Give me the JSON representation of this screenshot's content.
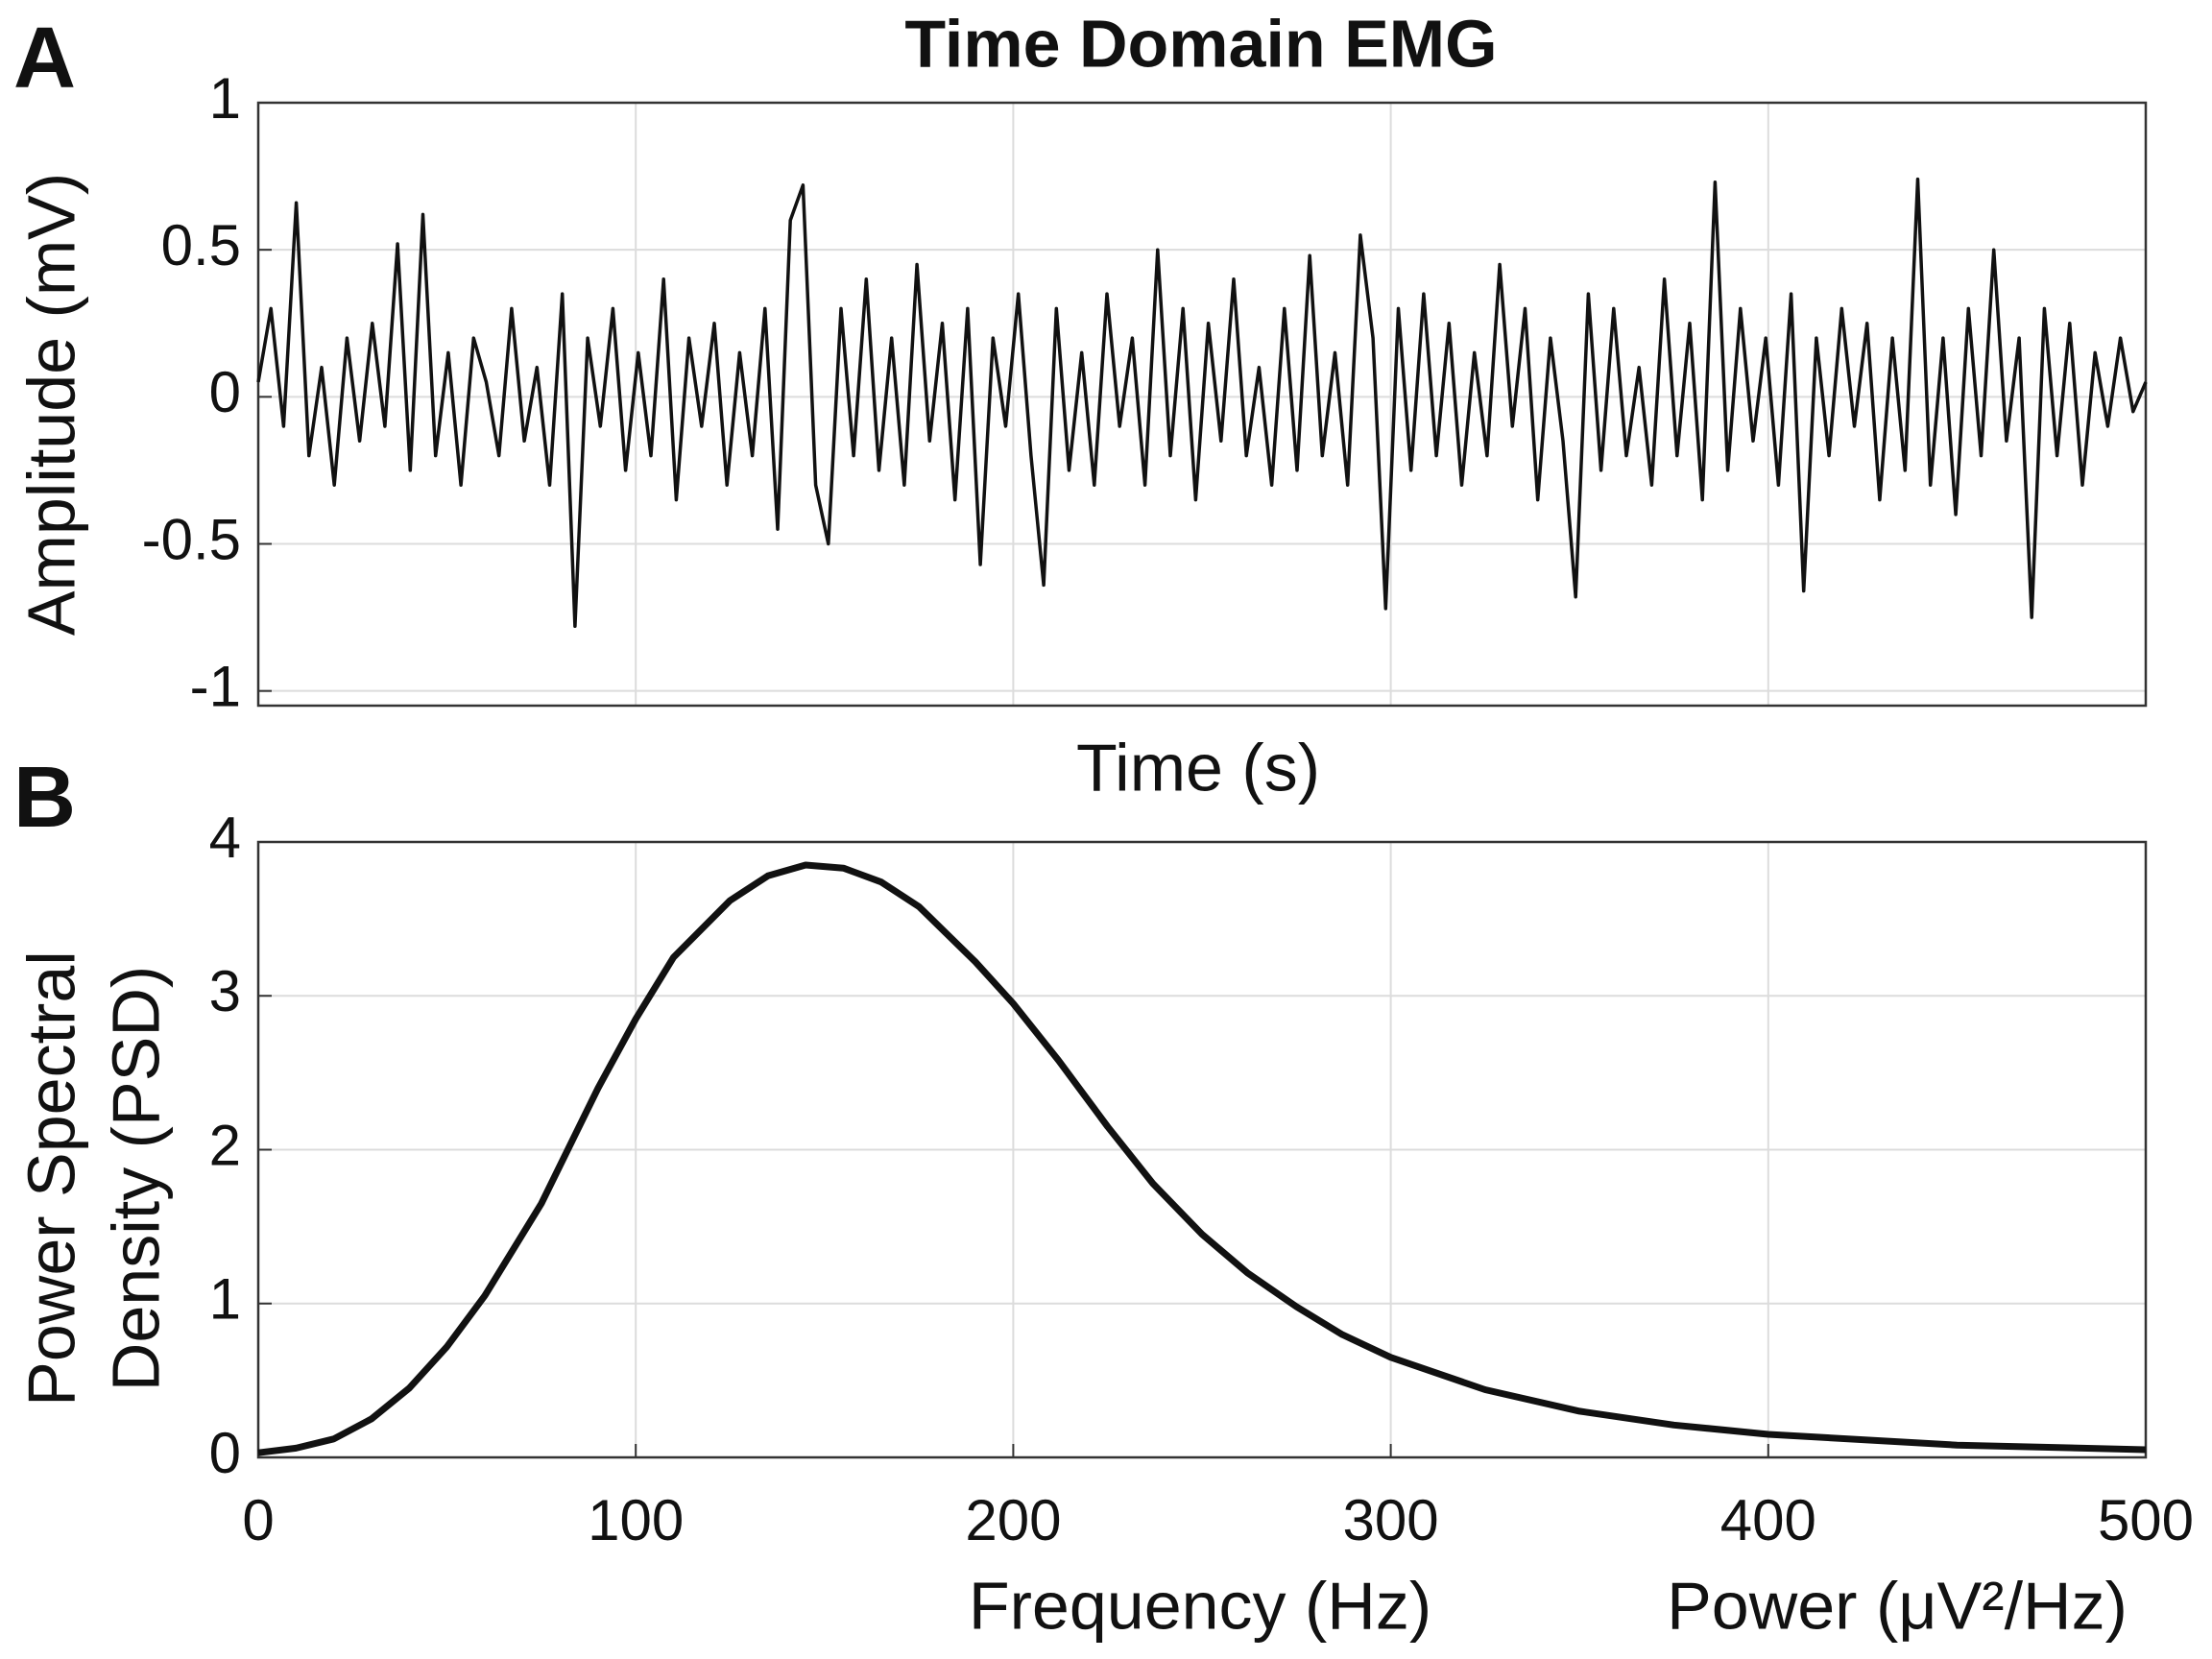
{
  "chart_data": [
    {
      "type": "line",
      "panel": "A",
      "title": "Time Domain EMG",
      "xlabel": "Time (s)",
      "ylabel": "Amplitude (mV)",
      "ylim": [
        -1.05,
        1
      ],
      "yticks": [
        -1,
        -0.5,
        0,
        0.5,
        1
      ],
      "grid": true,
      "color": "#111111",
      "values": [
        0.05,
        0.3,
        -0.1,
        0.66,
        -0.2,
        0.1,
        -0.3,
        0.2,
        -0.15,
        0.25,
        -0.1,
        0.52,
        -0.25,
        0.62,
        -0.2,
        0.15,
        -0.3,
        0.2,
        0.05,
        -0.2,
        0.3,
        -0.15,
        0.1,
        -0.3,
        0.35,
        -0.78,
        0.2,
        -0.1,
        0.3,
        -0.25,
        0.15,
        -0.2,
        0.4,
        -0.35,
        0.2,
        -0.1,
        0.25,
        -0.3,
        0.15,
        -0.2,
        0.3,
        -0.45,
        0.6,
        0.72,
        -0.3,
        -0.5,
        0.3,
        -0.2,
        0.4,
        -0.25,
        0.2,
        -0.3,
        0.45,
        -0.15,
        0.25,
        -0.35,
        0.3,
        -0.57,
        0.2,
        -0.1,
        0.35,
        -0.2,
        -0.64,
        0.3,
        -0.25,
        0.15,
        -0.3,
        0.35,
        -0.1,
        0.2,
        -0.3,
        0.5,
        -0.2,
        0.3,
        -0.35,
        0.25,
        -0.15,
        0.4,
        -0.2,
        0.1,
        -0.3,
        0.3,
        -0.25,
        0.48,
        -0.2,
        0.15,
        -0.3,
        0.55,
        0.2,
        -0.72,
        0.3,
        -0.25,
        0.35,
        -0.2,
        0.25,
        -0.3,
        0.15,
        -0.2,
        0.45,
        -0.1,
        0.3,
        -0.35,
        0.2,
        -0.15,
        -0.68,
        0.35,
        -0.25,
        0.3,
        -0.2,
        0.1,
        -0.3,
        0.4,
        -0.2,
        0.25,
        -0.35,
        0.73,
        -0.25,
        0.3,
        -0.15,
        0.2,
        -0.3,
        0.35,
        -0.66,
        0.2,
        -0.2,
        0.3,
        -0.1,
        0.25,
        -0.35,
        0.2,
        -0.25,
        0.74,
        -0.3,
        0.2,
        -0.4,
        0.3,
        -0.2,
        0.5,
        -0.15,
        0.2,
        -0.75,
        0.3,
        -0.2,
        0.25,
        -0.3,
        0.15,
        -0.1,
        0.2,
        -0.05,
        0.05
      ]
    },
    {
      "type": "line",
      "panel": "B",
      "xlabel": "Frequency (Hz)",
      "xlabel2": "Power (μV²/Hz)",
      "ylabel": [
        "Power Spectral",
        "Density (PSD)"
      ],
      "xlim": [
        0,
        500
      ],
      "xticks": [
        0,
        100,
        200,
        300,
        400,
        500
      ],
      "ylim": [
        0,
        4
      ],
      "yticks": [
        0,
        1,
        2,
        3,
        4
      ],
      "grid": true,
      "color": "#111111",
      "x": [
        0,
        10,
        20,
        30,
        40,
        50,
        60,
        75,
        90,
        100,
        110,
        125,
        135,
        145,
        155,
        165,
        175,
        190,
        200,
        212,
        225,
        237,
        250,
        262,
        275,
        287,
        300,
        325,
        350,
        375,
        400,
        450,
        500
      ],
      "values": [
        0.03,
        0.06,
        0.12,
        0.25,
        0.45,
        0.72,
        1.05,
        1.65,
        2.4,
        2.85,
        3.25,
        3.62,
        3.78,
        3.85,
        3.83,
        3.74,
        3.58,
        3.22,
        2.95,
        2.58,
        2.15,
        1.78,
        1.45,
        1.2,
        0.98,
        0.8,
        0.65,
        0.44,
        0.3,
        0.21,
        0.15,
        0.08,
        0.05
      ]
    }
  ]
}
